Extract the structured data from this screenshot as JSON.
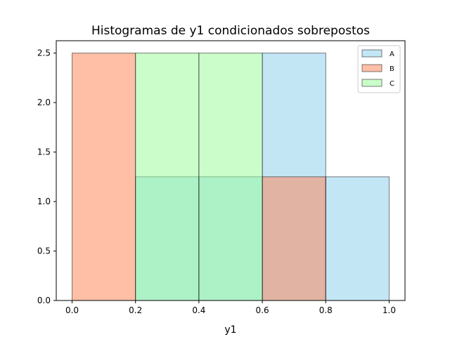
{
  "chart_data": {
    "type": "histogram",
    "title": "Histogramas de y1 condicionados sobrepostos",
    "xlabel": "y1",
    "ylabel": "",
    "xlim": [
      -0.05,
      1.05
    ],
    "ylim": [
      0,
      2.625
    ],
    "x_ticks": [
      "0.0",
      "0.2",
      "0.4",
      "0.6",
      "0.8",
      "1.0"
    ],
    "y_ticks": [
      "0.0",
      "0.5",
      "1.0",
      "1.5",
      "2.0",
      "2.5"
    ],
    "grid": false,
    "legend_position": "top-right",
    "overlay_alpha": 0.5,
    "series": [
      {
        "name": "A",
        "color": "#87CEEB",
        "bins": [
          {
            "x0": 0.2,
            "x1": 0.4,
            "height": 1.25
          },
          {
            "x0": 0.4,
            "x1": 0.6,
            "height": 1.25
          },
          {
            "x0": 0.6,
            "x1": 0.8,
            "height": 2.5
          },
          {
            "x0": 0.8,
            "x1": 1.0,
            "height": 1.25
          }
        ]
      },
      {
        "name": "B",
        "color": "#FF7F50",
        "bins": [
          {
            "x0": 0.0,
            "x1": 0.2,
            "height": 2.5
          },
          {
            "x0": 0.6,
            "x1": 0.8,
            "height": 1.25
          }
        ]
      },
      {
        "name": "C",
        "color": "#98FB98",
        "bins": [
          {
            "x0": 0.2,
            "x1": 0.4,
            "height": 2.5
          },
          {
            "x0": 0.4,
            "x1": 0.6,
            "height": 2.5
          }
        ]
      }
    ]
  }
}
